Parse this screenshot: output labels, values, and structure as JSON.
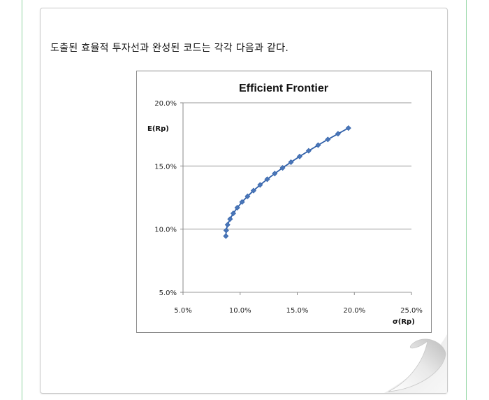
{
  "document": {
    "intro_text": "도출된 효율적 투자선과 완성된 코드는 각각 다음과 같다."
  },
  "colors": {
    "series_line": "#2f5fa8",
    "series_marker": "#4a76b8",
    "gridline": "#9a9a9a",
    "axis": "#8a8a8a"
  },
  "chart_data": {
    "type": "scatter",
    "title": "Efficient Frontier",
    "xlabel": "σ(Rp)",
    "ylabel": "E(Rp)",
    "xlim": [
      0.05,
      0.25
    ],
    "ylim": [
      0.05,
      0.2
    ],
    "x_ticks": [
      "5.0%",
      "10.0%",
      "15.0%",
      "20.0%",
      "25.0%"
    ],
    "y_ticks": [
      "5.0%",
      "10.0%",
      "15.0%",
      "20.0%"
    ],
    "grid": "horizontal",
    "legend": "none",
    "series": [
      {
        "points": [
          [
            0.0875,
            0.0945
          ],
          [
            0.0878,
            0.099
          ],
          [
            0.089,
            0.1035
          ],
          [
            0.0912,
            0.108
          ],
          [
            0.094,
            0.1125
          ],
          [
            0.0975,
            0.117
          ],
          [
            0.1017,
            0.1215
          ],
          [
            0.1065,
            0.126
          ],
          [
            0.1117,
            0.1305
          ],
          [
            0.1175,
            0.135
          ],
          [
            0.1237,
            0.1395
          ],
          [
            0.1303,
            0.144
          ],
          [
            0.1372,
            0.1485
          ],
          [
            0.1445,
            0.153
          ],
          [
            0.1521,
            0.1575
          ],
          [
            0.16,
            0.162
          ],
          [
            0.1683,
            0.1665
          ],
          [
            0.1768,
            0.171
          ],
          [
            0.1857,
            0.1755
          ],
          [
            0.1948,
            0.18
          ]
        ]
      }
    ]
  }
}
